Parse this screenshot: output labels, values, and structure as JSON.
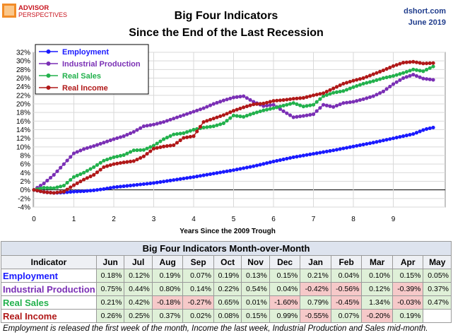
{
  "logo": {
    "line1": "ADVISOR",
    "line2": "PERSPECTIVES"
  },
  "source": {
    "site": "dshort.com",
    "date": "June 2019"
  },
  "chart_data": {
    "type": "line",
    "title": "Big Four Indicators",
    "subtitle": "Since the End of the Last Recession",
    "xlabel": "Years Since the 2009 Trough",
    "ylabel": "",
    "xlim": [
      0,
      10
    ],
    "ylim": [
      -4,
      32
    ],
    "x_ticks": [
      "0",
      "1",
      "2",
      "3",
      "4",
      "5",
      "6",
      "7",
      "8",
      "9"
    ],
    "y_ticks": [
      "-4%",
      "-2%",
      "0%",
      "2%",
      "4%",
      "6%",
      "8%",
      "10%",
      "12%",
      "14%",
      "16%",
      "18%",
      "20%",
      "22%",
      "24%",
      "26%",
      "28%",
      "30%",
      "32%"
    ],
    "grid": true,
    "legend_position": "top-left",
    "series": [
      {
        "name": "Employment",
        "color": "#1a1aff",
        "points": [
          [
            0,
            0
          ],
          [
            0.25,
            -0.5
          ],
          [
            0.5,
            -0.7
          ],
          [
            0.75,
            -0.6
          ],
          [
            1,
            -0.4
          ],
          [
            1.25,
            -0.3
          ],
          [
            1.5,
            -0.1
          ],
          [
            1.75,
            0.2
          ],
          [
            2,
            0.6
          ],
          [
            2.5,
            1.1
          ],
          [
            3,
            1.6
          ],
          [
            3.5,
            2.3
          ],
          [
            4,
            3.0
          ],
          [
            4.5,
            3.8
          ],
          [
            5,
            4.6
          ],
          [
            5.5,
            5.5
          ],
          [
            6,
            6.6
          ],
          [
            6.5,
            7.6
          ],
          [
            7,
            8.4
          ],
          [
            7.5,
            9.2
          ],
          [
            8,
            10.1
          ],
          [
            8.5,
            11.0
          ],
          [
            9,
            12.0
          ],
          [
            9.5,
            13.0
          ],
          [
            9.8,
            14.1
          ],
          [
            10,
            14.5
          ]
        ]
      },
      {
        "name": "Industrial Production",
        "color": "#7a2fb5",
        "points": [
          [
            0,
            0
          ],
          [
            0.25,
            1.5
          ],
          [
            0.5,
            3.5
          ],
          [
            0.75,
            6.0
          ],
          [
            1,
            8.5
          ],
          [
            1.25,
            9.5
          ],
          [
            1.5,
            10.2
          ],
          [
            1.75,
            11.0
          ],
          [
            2,
            11.8
          ],
          [
            2.25,
            12.5
          ],
          [
            2.5,
            13.5
          ],
          [
            2.75,
            14.8
          ],
          [
            3,
            15.2
          ],
          [
            3.25,
            15.8
          ],
          [
            3.5,
            16.6
          ],
          [
            3.75,
            17.4
          ],
          [
            4,
            18.2
          ],
          [
            4.25,
            19.0
          ],
          [
            4.5,
            20.0
          ],
          [
            4.75,
            20.8
          ],
          [
            5,
            21.5
          ],
          [
            5.25,
            21.8
          ],
          [
            5.5,
            20.5
          ],
          [
            5.75,
            19.5
          ],
          [
            6,
            19.8
          ],
          [
            6.25,
            18.3
          ],
          [
            6.5,
            16.9
          ],
          [
            6.75,
            17.2
          ],
          [
            7,
            17.6
          ],
          [
            7.25,
            19.8
          ],
          [
            7.5,
            19.3
          ],
          [
            7.75,
            20.2
          ],
          [
            8,
            20.5
          ],
          [
            8.25,
            21.1
          ],
          [
            8.5,
            21.8
          ],
          [
            8.75,
            22.9
          ],
          [
            9,
            24.6
          ],
          [
            9.25,
            26.0
          ],
          [
            9.5,
            26.8
          ],
          [
            9.75,
            25.9
          ],
          [
            10,
            25.6
          ]
        ]
      },
      {
        "name": "Real Sales",
        "color": "#22b14c",
        "points": [
          [
            0,
            0
          ],
          [
            0.25,
            0.5
          ],
          [
            0.5,
            0.4
          ],
          [
            0.75,
            1.0
          ],
          [
            1,
            3.0
          ],
          [
            1.25,
            4.0
          ],
          [
            1.5,
            5.3
          ],
          [
            1.75,
            6.8
          ],
          [
            2,
            7.6
          ],
          [
            2.25,
            8.1
          ],
          [
            2.5,
            9.2
          ],
          [
            2.75,
            9.3
          ],
          [
            3,
            10.3
          ],
          [
            3.25,
            11.8
          ],
          [
            3.5,
            12.9
          ],
          [
            3.75,
            13.2
          ],
          [
            4,
            14.0
          ],
          [
            4.25,
            14.5
          ],
          [
            4.5,
            14.8
          ],
          [
            4.75,
            15.5
          ],
          [
            5,
            17.3
          ],
          [
            5.25,
            17.0
          ],
          [
            5.5,
            17.8
          ],
          [
            5.75,
            18.5
          ],
          [
            6,
            19.0
          ],
          [
            6.25,
            19.6
          ],
          [
            6.5,
            20.2
          ],
          [
            6.75,
            19.4
          ],
          [
            7,
            19.8
          ],
          [
            7.25,
            21.8
          ],
          [
            7.5,
            22.6
          ],
          [
            7.75,
            23.0
          ],
          [
            8,
            23.9
          ],
          [
            8.25,
            24.7
          ],
          [
            8.5,
            25.3
          ],
          [
            8.75,
            26.0
          ],
          [
            9,
            26.5
          ],
          [
            9.25,
            27.2
          ],
          [
            9.5,
            28.0
          ],
          [
            9.75,
            27.6
          ],
          [
            10,
            28.7
          ]
        ]
      },
      {
        "name": "Real Income",
        "color": "#b01818",
        "points": [
          [
            0,
            0
          ],
          [
            0.25,
            -0.5
          ],
          [
            0.5,
            -0.7
          ],
          [
            0.75,
            -0.4
          ],
          [
            1,
            1.1
          ],
          [
            1.25,
            2.4
          ],
          [
            1.5,
            3.5
          ],
          [
            1.75,
            5.3
          ],
          [
            2,
            6.0
          ],
          [
            2.25,
            6.4
          ],
          [
            2.5,
            6.7
          ],
          [
            2.75,
            7.8
          ],
          [
            3,
            9.6
          ],
          [
            3.25,
            10.1
          ],
          [
            3.5,
            10.4
          ],
          [
            3.75,
            12.1
          ],
          [
            4,
            12.5
          ],
          [
            4.25,
            15.8
          ],
          [
            4.5,
            16.6
          ],
          [
            4.75,
            17.4
          ],
          [
            5,
            18.4
          ],
          [
            5.25,
            19.2
          ],
          [
            5.5,
            19.9
          ],
          [
            5.75,
            20.1
          ],
          [
            6,
            20.7
          ],
          [
            6.25,
            20.9
          ],
          [
            6.5,
            21.2
          ],
          [
            6.75,
            21.4
          ],
          [
            7,
            22.0
          ],
          [
            7.25,
            22.5
          ],
          [
            7.5,
            23.6
          ],
          [
            7.75,
            24.7
          ],
          [
            8,
            25.4
          ],
          [
            8.25,
            26.0
          ],
          [
            8.5,
            26.9
          ],
          [
            8.75,
            27.8
          ],
          [
            9,
            28.8
          ],
          [
            9.25,
            29.6
          ],
          [
            9.5,
            29.8
          ],
          [
            9.75,
            29.4
          ],
          [
            10,
            29.5
          ]
        ]
      }
    ]
  },
  "table": {
    "title": "Big Four Indicators Month-over-Month",
    "header": [
      "Indicator",
      "Jun",
      "Jul",
      "Aug",
      "Sep",
      "Oct",
      "Nov",
      "Dec",
      "Jan",
      "Feb",
      "Mar",
      "Apr",
      "May"
    ],
    "rows": [
      {
        "name": "Employment",
        "color": "#1a1aff",
        "values": [
          "0.18%",
          "0.12%",
          "0.19%",
          "0.07%",
          "0.19%",
          "0.13%",
          "0.15%",
          "0.21%",
          "0.04%",
          "0.10%",
          "0.15%",
          "0.05%"
        ]
      },
      {
        "name": "Industrial Production",
        "color": "#7a2fb5",
        "values": [
          "0.75%",
          "0.44%",
          "0.80%",
          "0.14%",
          "0.22%",
          "0.54%",
          "0.04%",
          "-0.42%",
          "-0.56%",
          "0.12%",
          "-0.39%",
          "0.37%"
        ]
      },
      {
        "name": "Real Sales",
        "color": "#22b14c",
        "values": [
          "0.21%",
          "0.42%",
          "-0.18%",
          "-0.27%",
          "0.65%",
          "0.01%",
          "-1.60%",
          "0.79%",
          "-0.45%",
          "1.34%",
          "-0.03%",
          "0.47%"
        ]
      },
      {
        "name": "Real Income",
        "color": "#b01818",
        "values": [
          "0.26%",
          "0.25%",
          "0.37%",
          "0.02%",
          "0.08%",
          "0.15%",
          "0.99%",
          "-0.55%",
          "0.07%",
          "-0.20%",
          "0.19%",
          ""
        ]
      }
    ]
  },
  "footnote": "Employment is released the first week of the month, Income the last week, Industrial Production and Sales mid-month."
}
